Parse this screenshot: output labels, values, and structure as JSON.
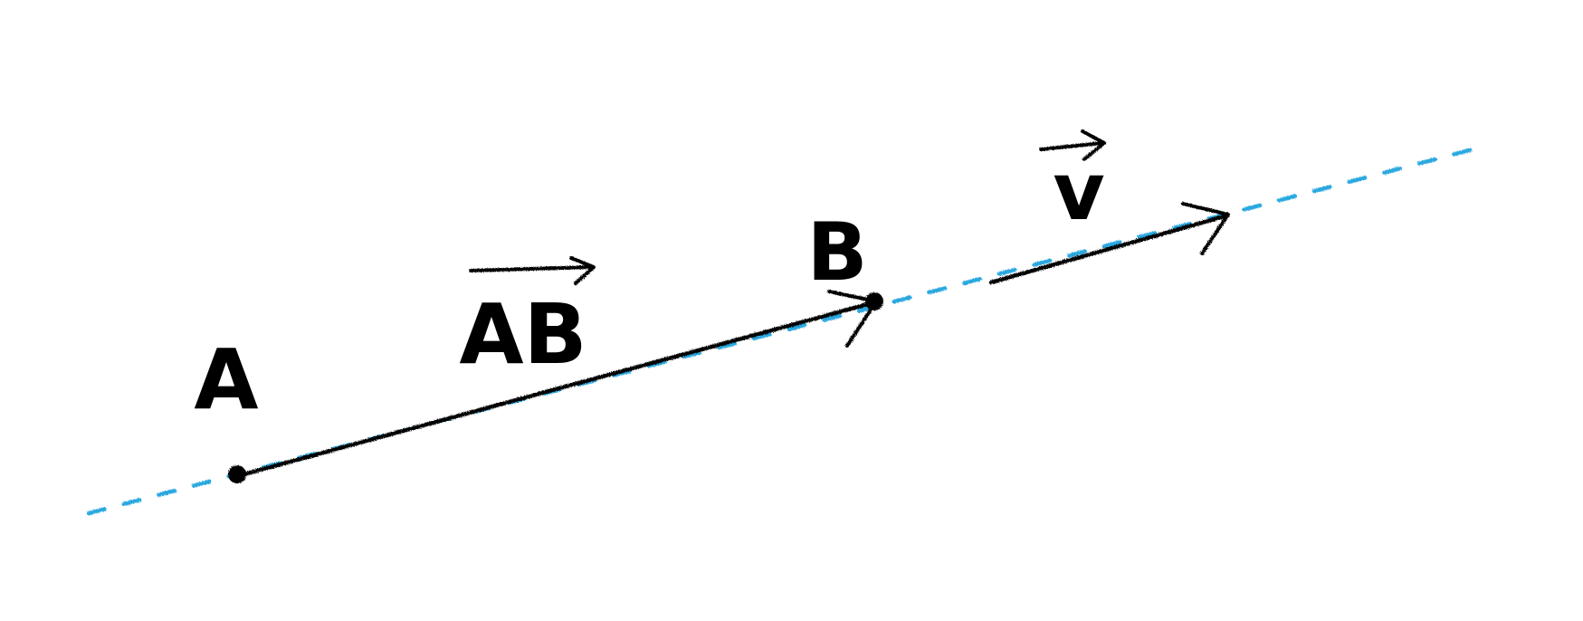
{
  "diagram": {
    "points": [
      {
        "id": "A",
        "label": "A"
      },
      {
        "id": "B",
        "label": "B"
      }
    ],
    "vectors": [
      {
        "id": "AB",
        "label": "AB"
      },
      {
        "id": "v",
        "label": "v"
      }
    ]
  },
  "colors": {
    "ink": "#000000",
    "line": "#29a8e0",
    "background": "#ffffff"
  }
}
